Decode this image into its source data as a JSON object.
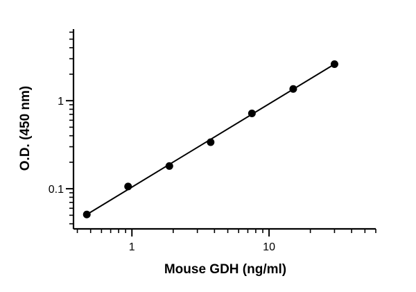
{
  "chart_data": {
    "type": "scatter",
    "title": "",
    "xlabel": "Mouse GDH (ng/ml)",
    "ylabel": "O.D. (450 nm)",
    "xscale": "log",
    "yscale": "log",
    "xlim": [
      0.375,
      60
    ],
    "ylim": [
      0.035,
      6.5
    ],
    "x_tick_labels": [
      {
        "value": 1,
        "label": "1"
      },
      {
        "value": 10,
        "label": "10"
      }
    ],
    "y_tick_labels": [
      {
        "value": 0.1,
        "label": "0.1"
      },
      {
        "value": 1,
        "label": "1"
      }
    ],
    "grid": false,
    "legend": "none",
    "series": [
      {
        "x": [
          0.469,
          0.938,
          1.875,
          3.75,
          7.5,
          15,
          30
        ],
        "y": [
          0.051,
          0.106,
          0.181,
          0.338,
          0.718,
          1.36,
          2.6
        ]
      }
    ],
    "fit_line": {
      "x": [
        0.469,
        30
      ],
      "y": [
        0.051,
        2.6
      ]
    }
  }
}
